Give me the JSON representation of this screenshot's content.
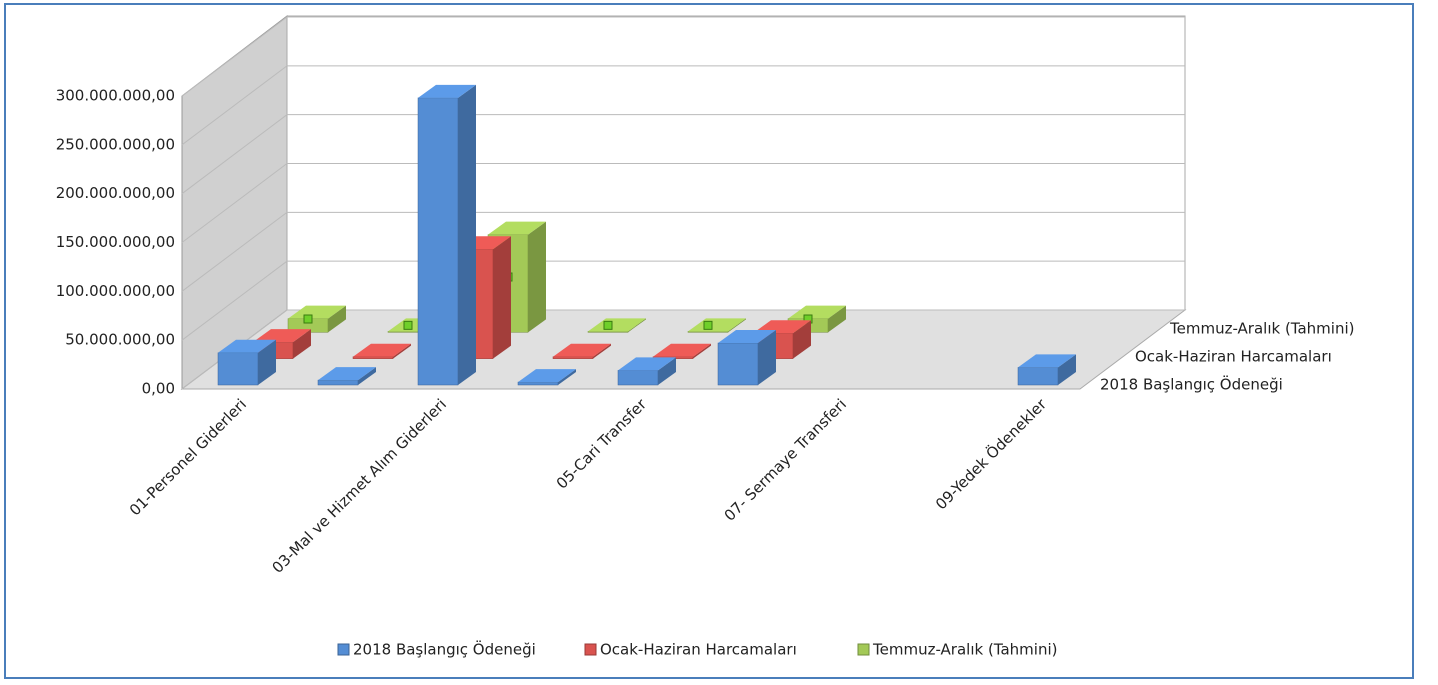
{
  "chart_data": {
    "type": "bar3d",
    "categories": [
      "01-Personel Giderleri",
      null,
      "03-Mal ve Hizmet Alım Giderleri",
      null,
      "05-Cari Transfer",
      null,
      "07- Sermaye Transferi",
      null,
      "09-Yedek Ödenekler"
    ],
    "series": [
      {
        "name": "2018 Başlangıç Ödeneği",
        "color": "#548dd4",
        "values": [
          33000000,
          5000000,
          294000000,
          3000000,
          15000000,
          43000000,
          null,
          null,
          18000000
        ]
      },
      {
        "name": "Ocak-Haziran Harcamaları",
        "color": "#d9534f",
        "values": [
          17000000,
          2000000,
          112000000,
          2000000,
          2000000,
          26000000,
          null,
          null,
          null
        ]
      },
      {
        "name": "Temmuz-Aralık (Tahmini)",
        "color": "#a3c957",
        "values": [
          14000000,
          1000000,
          100000000,
          1000000,
          1000000,
          14000000,
          null,
          null,
          null
        ]
      }
    ],
    "ylim": [
      0,
      300000000
    ],
    "yticks": [
      {
        "value": 0,
        "label": "0,00"
      },
      {
        "value": 50000000,
        "label": "50.000.000,00"
      },
      {
        "value": 100000000,
        "label": "100.000.000,00"
      },
      {
        "value": 150000000,
        "label": "150.000.000,00"
      },
      {
        "value": 200000000,
        "label": "200.000.000,00"
      },
      {
        "value": 250000000,
        "label": "250.000.000,00"
      },
      {
        "value": 300000000,
        "label": "300.000.000,00"
      }
    ],
    "grid": true,
    "legend": "bottom"
  }
}
